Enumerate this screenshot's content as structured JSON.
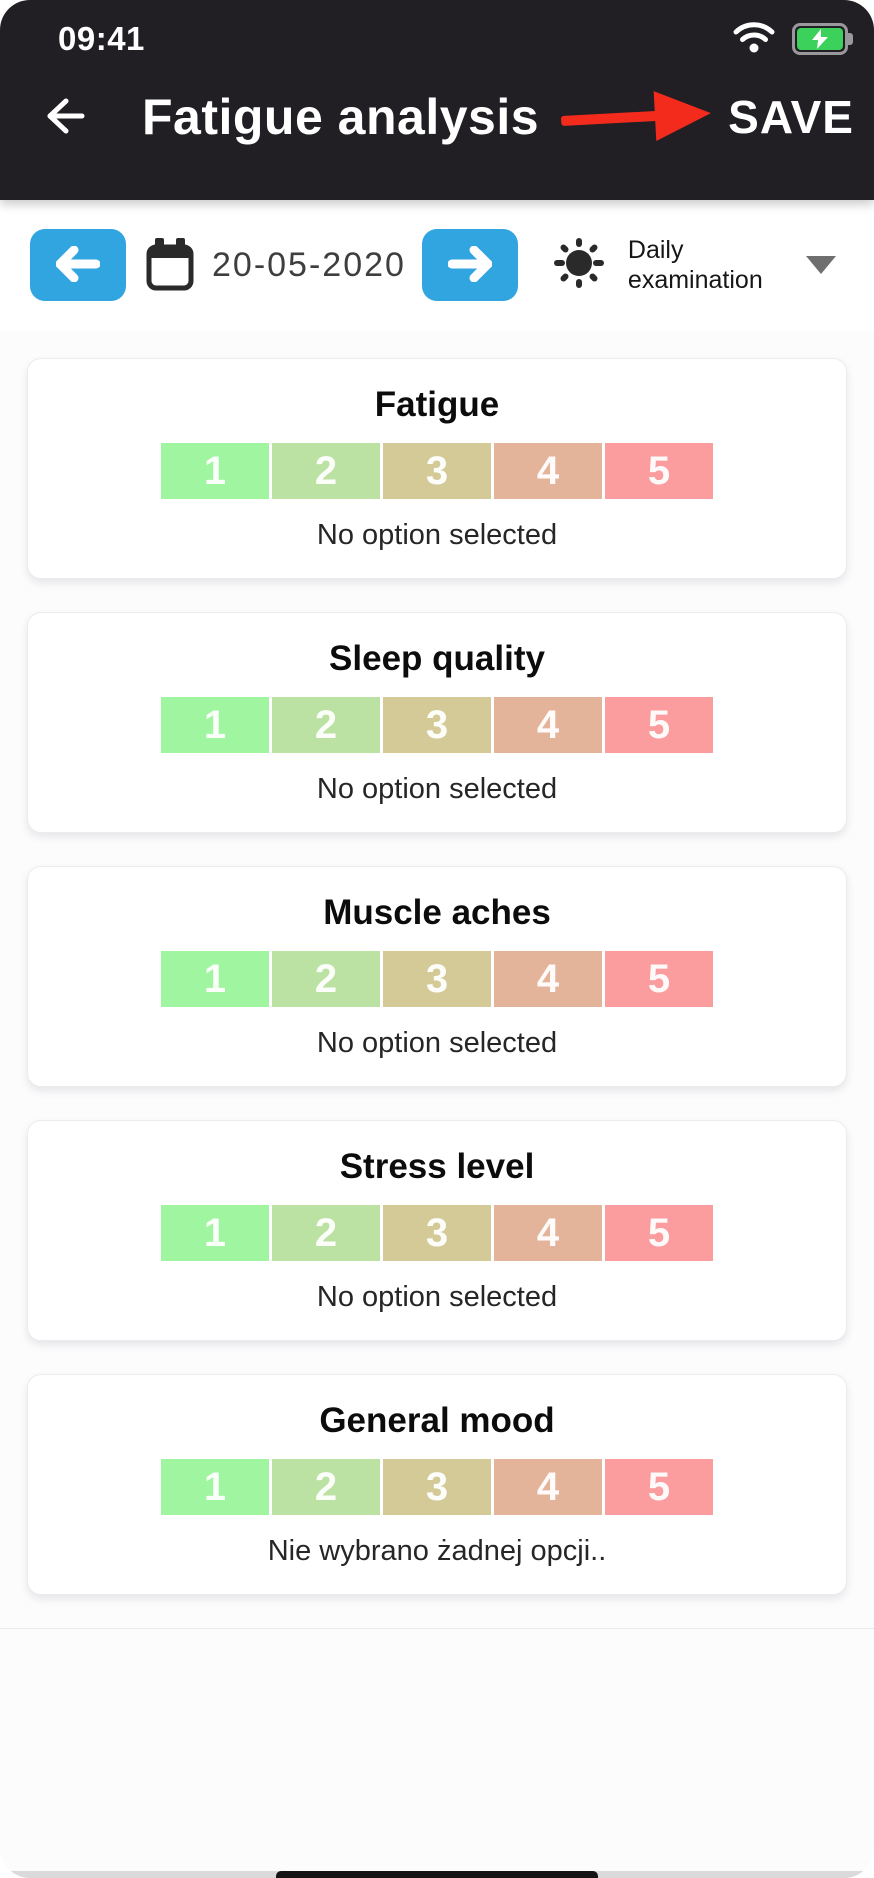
{
  "status_bar": {
    "time": "09:41",
    "wifi_icon": "wifi",
    "battery_icon": "battery-charging"
  },
  "header": {
    "back_icon": "arrow-left",
    "title": "Fatigue analysis",
    "annotation_icon": "red-arrow-pointing-right",
    "annotation_color": "#f32b1c",
    "save_label": "SAVE"
  },
  "toolbar": {
    "prev_icon": "arrow-left",
    "calendar_icon": "calendar",
    "date": "20-05-2020",
    "next_icon": "arrow-right",
    "exam_icon": "sun",
    "exam_type": "Daily examination",
    "dropdown_icon": "chevron-down"
  },
  "scale": {
    "options": [
      "1",
      "2",
      "3",
      "4",
      "5"
    ],
    "colors": [
      "#a0f5a0",
      "#bce2a3",
      "#d3ca97",
      "#e4b49a",
      "#fb9c9f"
    ]
  },
  "cards": [
    {
      "title": "Fatigue",
      "caption": "No option selected"
    },
    {
      "title": "Sleep quality",
      "caption": "No option selected"
    },
    {
      "title": "Muscle aches",
      "caption": "No option selected"
    },
    {
      "title": "Stress level",
      "caption": "No option selected"
    },
    {
      "title": "General mood",
      "caption": "Nie wybrano żadnej opcji.."
    }
  ],
  "colors": {
    "header_bg": "#211f24",
    "accent_blue": "#31a5e0",
    "battery_green": "#3bd15b",
    "page_bg": "#fcfcfd",
    "card_bg": "#ffffff"
  }
}
